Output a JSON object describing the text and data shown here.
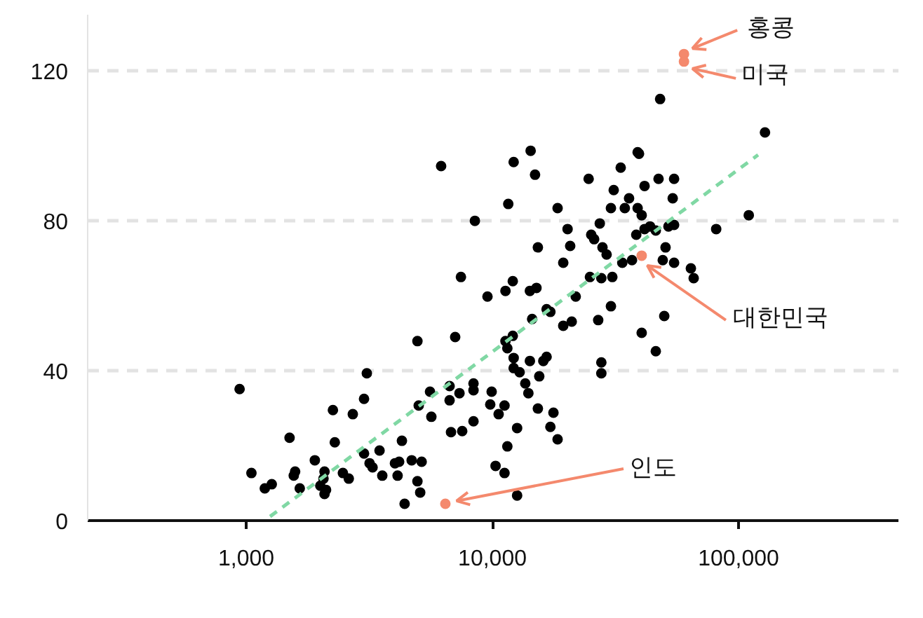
{
  "chart_data": {
    "type": "scatter",
    "log": "x",
    "grid": "y",
    "marker": "circle",
    "xlim": [
      227,
      446000
    ],
    "ylim": [
      0,
      135
    ],
    "xticks": [
      {
        "value": 1000,
        "label": "1,000"
      },
      {
        "value": 10000,
        "label": "10,000"
      },
      {
        "value": 100000,
        "label": "100,000"
      }
    ],
    "yticks": [
      0,
      40,
      80,
      120
    ],
    "series": [
      {
        "color": "#000000",
        "x": [
          6190,
          8490,
          7450,
          9550,
          940,
          4960,
          7060,
          3090,
          3010,
          2250,
          2710,
          1500,
          2290,
          5580,
          5020,
          5650,
          6700,
          7350,
          6700,
          8380,
          8380,
          8380,
          6790,
          7540,
          4290,
          3010,
          3480,
          3170,
          3260,
          4020,
          4180,
          4700,
          5160,
          1900,
          1580,
          1560,
          2080,
          2060,
          2470,
          2610,
          1050,
          1270,
          1190,
          1650,
          2000,
          2110,
          2080,
          3570,
          4120,
          4960,
          5090,
          4400,
          14300,
          12200,
          14900,
          24600,
          33200,
          38900,
          39400,
          47300,
          54700,
          11600,
          18400,
          31100,
          35900,
          41500,
          54000,
          30300,
          34500,
          38900,
          40400,
          20200,
          27300,
          41500,
          43700,
          46100,
          51900,
          54700,
          81100,
          38400,
          25200,
          25900,
          15300,
          20700,
          28000,
          29100,
          50500,
          19400,
          33700,
          36900,
          49200,
          54700,
          64000,
          65700,
          24900,
          27700,
          30700,
          12100,
          11300,
          14200,
          15100,
          21800,
          16600,
          17200,
          14500,
          21000,
          19400,
          26900,
          30300,
          49900,
          40400,
          46100,
          11300,
          12100,
          11500,
          12200,
          16600,
          16100,
          14200,
          12200,
          12900,
          15500,
          13600,
          14000,
          9930,
          27700,
          27700,
          9800,
          11200,
          10600,
          15300,
          17700,
          17200,
          18400,
          11500,
          12600,
          10300,
          11200,
          12600,
          48000,
          128000,
          110000
        ],
        "values": [
          94.6,
          80.0,
          65.0,
          59.8,
          35.1,
          47.9,
          49.0,
          39.3,
          32.5,
          29.5,
          28.4,
          22.1,
          20.9,
          34.4,
          30.7,
          27.7,
          35.9,
          34.0,
          32.1,
          36.6,
          34.8,
          26.5,
          23.6,
          23.9,
          21.3,
          17.9,
          18.7,
          15.3,
          14.2,
          15.3,
          15.7,
          16.1,
          15.7,
          16.1,
          13.1,
          12.0,
          13.1,
          11.2,
          12.7,
          11.2,
          12.7,
          9.7,
          8.6,
          8.6,
          9.3,
          8.2,
          7.1,
          12.0,
          12.0,
          10.5,
          7.5,
          4.5,
          98.7,
          95.7,
          92.3,
          91.2,
          94.2,
          98.3,
          97.9,
          91.2,
          91.2,
          84.5,
          83.4,
          88.2,
          86.0,
          89.3,
          86.0,
          83.4,
          83.4,
          83.4,
          81.5,
          77.8,
          79.3,
          77.8,
          78.5,
          77.4,
          78.5,
          78.9,
          77.8,
          76.3,
          76.3,
          75.1,
          72.9,
          73.3,
          72.9,
          71.0,
          72.9,
          68.8,
          68.8,
          69.5,
          69.5,
          68.8,
          67.3,
          64.7,
          65.0,
          64.7,
          65.0,
          63.9,
          61.3,
          61.3,
          62.1,
          59.8,
          56.4,
          55.7,
          53.8,
          53.1,
          52.0,
          53.5,
          57.2,
          54.6,
          50.1,
          45.2,
          47.9,
          49.3,
          46.0,
          43.4,
          43.7,
          42.6,
          42.6,
          40.7,
          39.6,
          38.5,
          36.6,
          34.0,
          34.4,
          42.2,
          39.3,
          31.0,
          30.7,
          28.4,
          29.9,
          28.8,
          25.0,
          21.7,
          19.8,
          24.7,
          14.6,
          12.7,
          6.7,
          112.5,
          103.6,
          81.5
        ]
      },
      {
        "color": "#f4896d",
        "x": [
          60000,
          60000,
          40400,
          6440
        ],
        "values": [
          124.5,
          122.5,
          70.7,
          4.5
        ]
      },
      {
        "type": "line",
        "color": "#80d8a4",
        "line_style": "dashed",
        "marker": "none",
        "x": [
          1250,
          120000
        ],
        "values": [
          1.1,
          97.6
        ]
      }
    ],
    "annotations": [
      {
        "text": "홍콩",
        "x": 60000,
        "y": 124.5
      },
      {
        "text": "미국",
        "x": 60000,
        "y": 122.5
      },
      {
        "text": "대한민국",
        "x": 40400,
        "y": 70.7
      },
      {
        "text": "인도",
        "x": 6440,
        "y": 4.5
      }
    ]
  }
}
